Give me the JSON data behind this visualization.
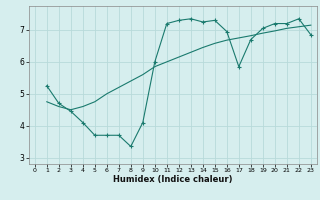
{
  "xlabel": "Humidex (Indice chaleur)",
  "background_color": "#d6eeee",
  "line_color": "#1a7a6e",
  "grid_color": "#b8dada",
  "xlim": [
    -0.5,
    23.5
  ],
  "ylim": [
    2.8,
    7.75
  ],
  "yticks": [
    3,
    4,
    5,
    6,
    7
  ],
  "xticks": [
    0,
    1,
    2,
    3,
    4,
    5,
    6,
    7,
    8,
    9,
    10,
    11,
    12,
    13,
    14,
    15,
    16,
    17,
    18,
    19,
    20,
    21,
    22,
    23
  ],
  "line1_x": [
    1,
    2,
    3,
    4,
    5,
    6,
    7,
    8,
    9,
    10,
    11,
    12,
    13,
    14,
    15,
    16,
    17,
    18,
    19,
    20,
    21,
    22,
    23
  ],
  "line1_y": [
    5.25,
    4.7,
    4.45,
    4.1,
    3.7,
    3.7,
    3.7,
    3.35,
    4.1,
    6.0,
    7.2,
    7.3,
    7.35,
    7.25,
    7.3,
    6.95,
    5.85,
    6.7,
    7.05,
    7.2,
    7.2,
    7.35,
    6.85
  ],
  "line2_x": [
    1,
    2,
    3,
    4,
    5,
    6,
    7,
    8,
    9,
    10,
    11,
    12,
    13,
    14,
    15,
    16,
    17,
    18,
    19,
    20,
    21,
    22,
    23
  ],
  "line2_y": [
    4.75,
    4.6,
    4.5,
    4.6,
    4.75,
    5.0,
    5.2,
    5.4,
    5.6,
    5.85,
    6.0,
    6.15,
    6.3,
    6.45,
    6.58,
    6.68,
    6.75,
    6.82,
    6.9,
    6.97,
    7.05,
    7.1,
    7.15
  ]
}
